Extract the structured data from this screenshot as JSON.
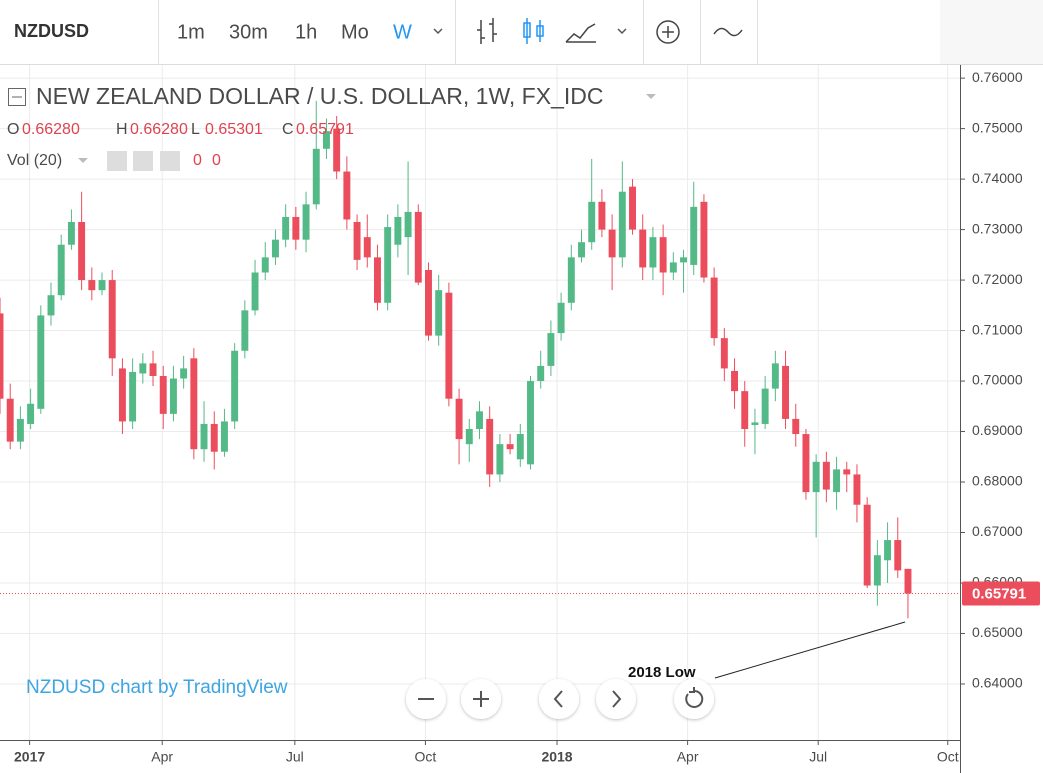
{
  "toolbar": {
    "symbol": "NZDUSD",
    "intervals": [
      "1m",
      "30m",
      "1h",
      "Mo",
      "W"
    ],
    "active_interval": 4
  },
  "legend": {
    "title": "NEW ZEALAND DOLLAR / U.S. DOLLAR, 1W, FX_IDC",
    "o": "O",
    "o_value": "0.66280",
    "h": "H",
    "h_value": "0.66280",
    "l": "L",
    "l_value": "0.65301",
    "c": "C",
    "c_value": "0.65791",
    "volume": "Vol (20)",
    "volume_values": [
      "0",
      "0"
    ]
  },
  "chart_data": {
    "type": "candlestick",
    "up_color": "#53b987",
    "down_color": "#eb4d5c",
    "grid": true,
    "open": [
      0.7134,
      0.6965,
      0.688,
      0.6915,
      0.6945,
      0.713,
      0.717,
      0.727,
      0.7315,
      0.72,
      0.718,
      0.72,
      0.7025,
      0.692,
      0.7015,
      0.7035,
      0.701,
      0.6935,
      0.7005,
      0.7045,
      0.6865,
      0.6915,
      0.686,
      0.692,
      0.706,
      0.714,
      0.7215,
      0.7245,
      0.728,
      0.7325,
      0.728,
      0.735,
      0.746,
      0.75,
      0.7415,
      0.7315,
      0.7285,
      0.7245,
      0.7155,
      0.727,
      0.7285,
      0.7335,
      0.722,
      0.709,
      0.7175,
      0.6965,
      0.6875,
      0.6905,
      0.6925,
      0.6815,
      0.6875,
      0.6845,
      0.6835,
      0.7,
      0.703,
      0.7095,
      0.7155,
      0.7245,
      0.7275,
      0.7355,
      0.73,
      0.7245,
      0.7385,
      0.73,
      0.7225,
      0.7285,
      0.7215,
      0.7235,
      0.723,
      0.7355,
      0.7205,
      0.7085,
      0.702,
      0.698,
      0.6913,
      0.6915,
      0.6985,
      0.703,
      0.6925,
      0.6895,
      0.678,
      0.684,
      0.678,
      0.6825,
      0.6815,
      0.6755,
      0.6595,
      0.6645,
      0.6685,
      0.6628
    ],
    "high": [
      0.7165,
      0.6995,
      0.695,
      0.6985,
      0.715,
      0.7195,
      0.729,
      0.734,
      0.7375,
      0.7225,
      0.7215,
      0.722,
      0.7045,
      0.7045,
      0.7055,
      0.706,
      0.703,
      0.703,
      0.705,
      0.7065,
      0.696,
      0.694,
      0.6945,
      0.7075,
      0.716,
      0.724,
      0.7275,
      0.73,
      0.735,
      0.7345,
      0.7375,
      0.7555,
      0.752,
      0.7525,
      0.7445,
      0.733,
      0.733,
      0.727,
      0.733,
      0.735,
      0.7435,
      0.735,
      0.7235,
      0.721,
      0.7195,
      0.6985,
      0.6925,
      0.696,
      0.695,
      0.6895,
      0.6895,
      0.6915,
      0.701,
      0.706,
      0.712,
      0.7175,
      0.727,
      0.73,
      0.744,
      0.738,
      0.733,
      0.7435,
      0.74,
      0.733,
      0.7305,
      0.731,
      0.7255,
      0.726,
      0.7395,
      0.737,
      0.7225,
      0.7105,
      0.7045,
      0.7,
      0.6945,
      0.701,
      0.706,
      0.706,
      0.6955,
      0.6905,
      0.6855,
      0.686,
      0.685,
      0.684,
      0.6835,
      0.677,
      0.6685,
      0.672,
      0.673,
      0.6628
    ],
    "low": [
      0.6935,
      0.6865,
      0.6865,
      0.6905,
      0.6935,
      0.711,
      0.716,
      0.726,
      0.718,
      0.716,
      0.717,
      0.701,
      0.6895,
      0.6905,
      0.6995,
      0.699,
      0.6905,
      0.692,
      0.6985,
      0.6845,
      0.684,
      0.6825,
      0.685,
      0.6905,
      0.7045,
      0.713,
      0.72,
      0.723,
      0.7265,
      0.726,
      0.7255,
      0.734,
      0.744,
      0.74,
      0.73,
      0.722,
      0.7225,
      0.714,
      0.714,
      0.7245,
      0.721,
      0.719,
      0.708,
      0.707,
      0.695,
      0.6835,
      0.684,
      0.6885,
      0.679,
      0.68,
      0.6855,
      0.683,
      0.6825,
      0.6985,
      0.701,
      0.708,
      0.714,
      0.7235,
      0.726,
      0.7285,
      0.718,
      0.7225,
      0.729,
      0.72,
      0.72,
      0.717,
      0.72,
      0.7175,
      0.721,
      0.7195,
      0.707,
      0.7,
      0.6945,
      0.687,
      0.6855,
      0.6905,
      0.696,
      0.6905,
      0.687,
      0.6765,
      0.669,
      0.676,
      0.6745,
      0.678,
      0.672,
      0.659,
      0.6555,
      0.66,
      0.661,
      0.65301
    ],
    "close": [
      0.6965,
      0.688,
      0.6925,
      0.6955,
      0.713,
      0.717,
      0.727,
      0.7315,
      0.72,
      0.718,
      0.72,
      0.7045,
      0.692,
      0.7018,
      0.7035,
      0.701,
      0.6935,
      0.7005,
      0.7025,
      0.6865,
      0.6915,
      0.686,
      0.692,
      0.706,
      0.714,
      0.7215,
      0.7245,
      0.728,
      0.7325,
      0.728,
      0.735,
      0.746,
      0.7495,
      0.7415,
      0.732,
      0.724,
      0.7245,
      0.7155,
      0.7305,
      0.7325,
      0.7335,
      0.7195,
      0.709,
      0.718,
      0.6965,
      0.6885,
      0.6905,
      0.694,
      0.6815,
      0.6875,
      0.6865,
      0.6895,
      0.7,
      0.703,
      0.7095,
      0.7155,
      0.7245,
      0.7275,
      0.7355,
      0.73,
      0.7245,
      0.7375,
      0.73,
      0.7225,
      0.7285,
      0.7215,
      0.7235,
      0.7245,
      0.7345,
      0.7205,
      0.7085,
      0.7025,
      0.698,
      0.6905,
      0.6918,
      0.6985,
      0.7035,
      0.6925,
      0.6895,
      0.678,
      0.684,
      0.6785,
      0.6825,
      0.6815,
      0.6755,
      0.6595,
      0.6655,
      0.6685,
      0.6625,
      0.65791
    ],
    "ylim": [
      0.6289,
      0.7626
    ],
    "yticks": [
      {
        "value": 0.64,
        "label": "0.64000"
      },
      {
        "value": 0.65,
        "label": "0.65000"
      },
      {
        "value": 0.66,
        "label": "0.66000"
      },
      {
        "value": 0.67,
        "label": "0.67000"
      },
      {
        "value": 0.68,
        "label": "0.68000"
      },
      {
        "value": 0.69,
        "label": "0.69000"
      },
      {
        "value": 0.7,
        "label": "0.70000"
      },
      {
        "value": 0.71,
        "label": "0.71000"
      },
      {
        "value": 0.72,
        "label": "0.72000"
      },
      {
        "value": 0.73,
        "label": "0.73000"
      },
      {
        "value": 0.74,
        "label": "0.74000"
      },
      {
        "value": 0.75,
        "label": "0.75000"
      },
      {
        "value": 0.76,
        "label": "0.76000"
      }
    ],
    "xlim": [
      0,
      94.1
    ],
    "xticks": [
      {
        "value": 2.9,
        "label": "2017"
      },
      {
        "value": 15.9,
        "label": "Apr"
      },
      {
        "value": 28.9,
        "label": "Jul"
      },
      {
        "value": 41.7,
        "label": "Oct"
      },
      {
        "value": 54.6,
        "label": "2018"
      },
      {
        "value": 67.4,
        "label": "Apr"
      },
      {
        "value": 80.2,
        "label": "Jul"
      },
      {
        "value": 92.9,
        "label": "Oct"
      }
    ],
    "annotation": "2018 Low",
    "watermark": "NZDUSD chart by TradingView"
  }
}
